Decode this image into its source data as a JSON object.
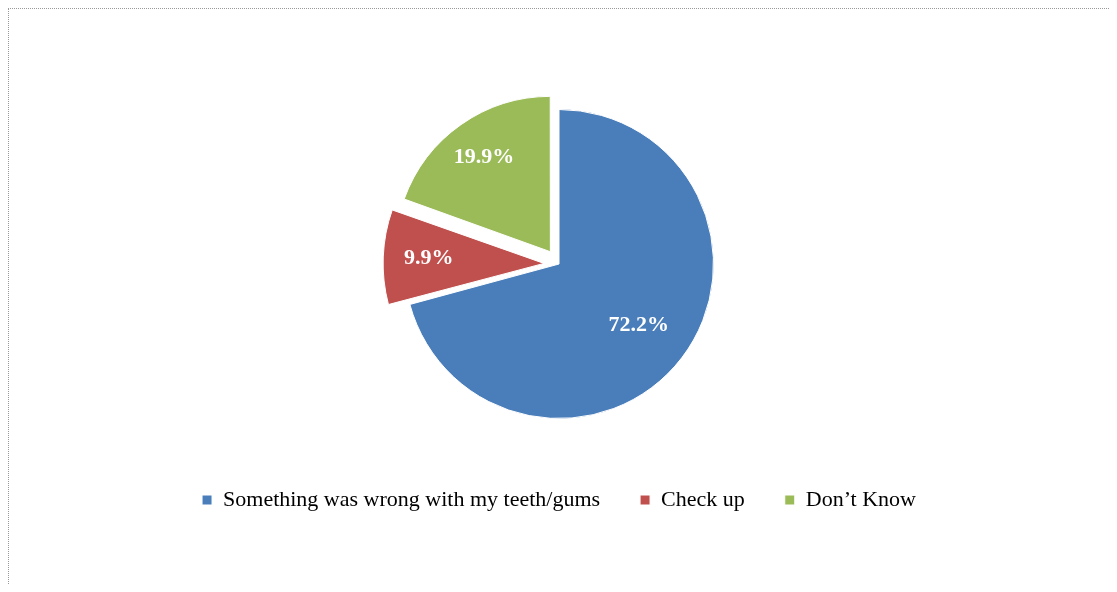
{
  "chart_data": {
    "type": "pie",
    "categories": [
      "Something was wrong with my teeth/gums",
      "Check up",
      "Don’t Know"
    ],
    "values": [
      72.2,
      9.9,
      19.9
    ],
    "colors": [
      "#4a7ebb",
      "#c0504d",
      "#9bbb59"
    ],
    "value_labels": [
      "72.2%",
      "9.9%",
      "19.9%"
    ],
    "legend": "bottom"
  }
}
